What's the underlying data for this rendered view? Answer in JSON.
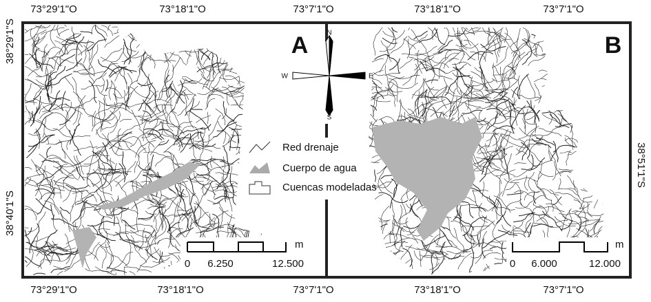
{
  "top_labels": [
    "73°29'1\"O",
    "73°18'1\"O",
    "73°7'1\"O",
    "73°18'1\"O",
    "73°7'1\"O"
  ],
  "bottom_labels": [
    "73°29'1\"O",
    "73°18'1\"O",
    "73°7'1\"O",
    "73°18'1\"O",
    "73°7'1\"O"
  ],
  "left_labels": [
    "38°29'1\"S",
    "38°40'1\"S"
  ],
  "right_labels": [
    "38°51'1\"S"
  ],
  "panels": [
    {
      "letter": "A",
      "scale": {
        "ticks": [
          "0",
          "6.250",
          "12.500"
        ],
        "unit": "m"
      }
    },
    {
      "letter": "B",
      "scale": {
        "ticks": [
          "0",
          "6.000",
          "12.000"
        ],
        "unit": "m"
      }
    }
  ],
  "compass": {
    "n": "N",
    "s": "S",
    "e": "E",
    "w": "W"
  },
  "legend": [
    "Red drenaje",
    "Cuerpo de agua",
    "Cuencas modeladas"
  ]
}
